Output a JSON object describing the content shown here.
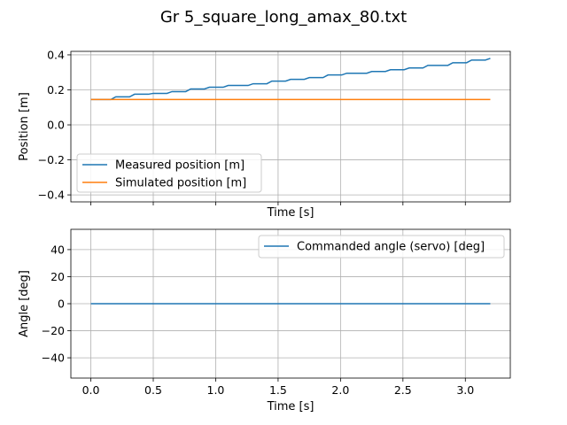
{
  "figure": {
    "title": "Gr 5_square_long_amax_80.txt"
  },
  "chart_data": [
    {
      "type": "line",
      "xlabel": "Time [s]",
      "ylabel": "Position [m]",
      "xlim": [
        -0.16,
        3.36
      ],
      "ylim": [
        -0.44,
        0.42
      ],
      "xticks": [
        0.0,
        0.5,
        1.0,
        1.5,
        2.0,
        2.5,
        3.0
      ],
      "xtick_labels_visible": false,
      "yticks": [
        -0.4,
        -0.2,
        0.0,
        0.2,
        0.4
      ],
      "ytick_labels": [
        "−0.4",
        "−0.2",
        "0.0",
        "0.2",
        "0.4"
      ],
      "grid": true,
      "legend_position": "lower-left",
      "series": [
        {
          "name": "Measured position [m]",
          "color": "#1f77b4",
          "style": "step",
          "x": [
            0.0,
            0.2,
            0.35,
            0.5,
            0.65,
            0.8,
            0.95,
            1.1,
            1.3,
            1.45,
            1.6,
            1.75,
            1.9,
            2.05,
            2.25,
            2.4,
            2.55,
            2.7,
            2.9,
            3.05,
            3.2
          ],
          "y": [
            0.145,
            0.16,
            0.175,
            0.18,
            0.19,
            0.205,
            0.215,
            0.225,
            0.235,
            0.25,
            0.26,
            0.27,
            0.285,
            0.295,
            0.305,
            0.315,
            0.325,
            0.34,
            0.355,
            0.37,
            0.38
          ]
        },
        {
          "name": "Simulated position [m]",
          "color": "#ff7f0e",
          "style": "line",
          "x": [
            0.0,
            3.2
          ],
          "y": [
            0.145,
            0.145
          ]
        }
      ]
    },
    {
      "type": "line",
      "xlabel": "Time [s]",
      "ylabel": "Angle [deg]",
      "xlim": [
        -0.16,
        3.36
      ],
      "ylim": [
        -55,
        55
      ],
      "xticks": [
        0.0,
        0.5,
        1.0,
        1.5,
        2.0,
        2.5,
        3.0
      ],
      "xtick_labels": [
        "0.0",
        "0.5",
        "1.0",
        "1.5",
        "2.0",
        "2.5",
        "3.0"
      ],
      "yticks": [
        -40,
        -20,
        0,
        20,
        40
      ],
      "ytick_labels": [
        "−40",
        "−20",
        "0",
        "20",
        "40"
      ],
      "grid": true,
      "legend_position": "upper-right",
      "series": [
        {
          "name": "Commanded angle (servo) [deg]",
          "color": "#1f77b4",
          "style": "line",
          "x": [
            0.0,
            3.2
          ],
          "y": [
            0,
            0
          ]
        }
      ]
    }
  ]
}
